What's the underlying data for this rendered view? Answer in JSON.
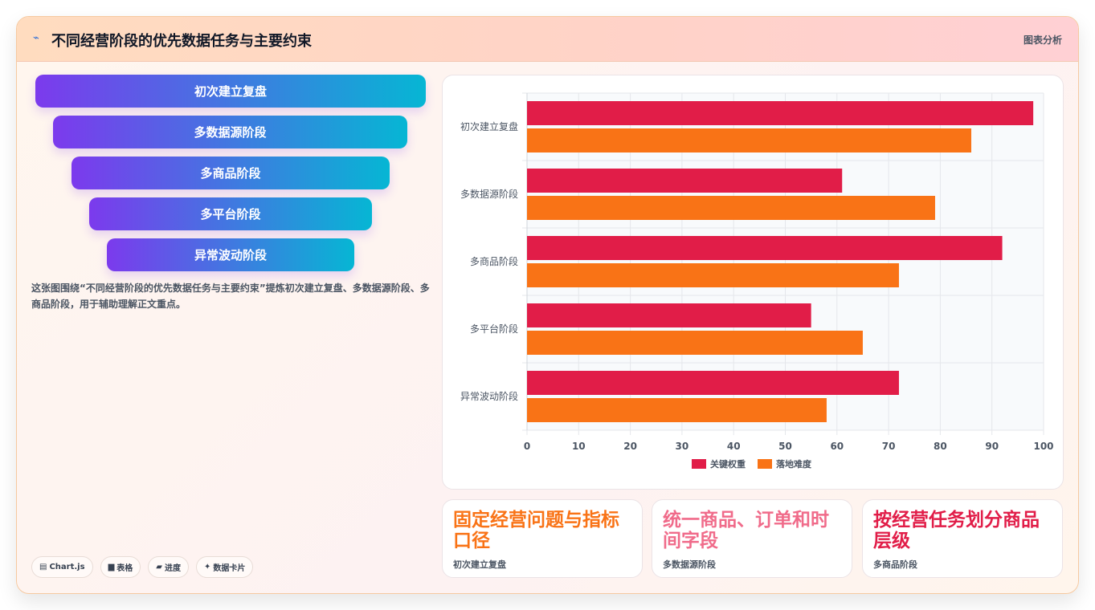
{
  "header": {
    "icon": "trend-line-icon",
    "title": "不同经营阶段的优先数据任务与主要约束",
    "tag": "图表分析"
  },
  "funnel": {
    "steps": [
      "初次建立复盘",
      "多数据源阶段",
      "多商品阶段",
      "多平台阶段",
      "异常波动阶段"
    ],
    "colors": [
      "#7c3aed",
      "#06b6d4"
    ]
  },
  "description": "这张图围绕“不同经营阶段的优先数据任务与主要约束”提炼初次建立复盘、多数据源阶段、多商品阶段，用于辅助理解正文重点。",
  "chips": [
    {
      "icon": "chart-icon",
      "label": "Chart.js"
    },
    {
      "icon": "table-icon",
      "label": "表格"
    },
    {
      "icon": "progress-icon",
      "label": "进度"
    },
    {
      "icon": "sparkle-icon",
      "label": "数据卡片"
    }
  ],
  "chart_data": {
    "type": "bar",
    "orientation": "horizontal",
    "categories": [
      "初次建立复盘",
      "多数据源阶段",
      "多商品阶段",
      "多平台阶段",
      "异常波动阶段"
    ],
    "series": [
      {
        "name": "关键权重",
        "color": "#e11d48",
        "values": [
          98,
          61,
          92,
          55,
          72
        ]
      },
      {
        "name": "落地难度",
        "color": "#f97316",
        "values": [
          86,
          79,
          72,
          65,
          58
        ]
      }
    ],
    "xlim": [
      0,
      100
    ],
    "xticks": [
      0,
      10,
      20,
      30,
      40,
      50,
      60,
      70,
      80,
      90,
      100
    ],
    "grid": true,
    "legend": "bottom"
  },
  "cards": [
    {
      "title": "固定经营问题与指标口径",
      "subtitle": "初次建立复盘",
      "color": "#f97316"
    },
    {
      "title": "统一商品、订单和时间字段",
      "subtitle": "多数据源阶段",
      "color": "#f06b8a"
    },
    {
      "title": "按经营任务划分商品层级",
      "subtitle": "多商品阶段",
      "color": "#e11d48"
    }
  ]
}
